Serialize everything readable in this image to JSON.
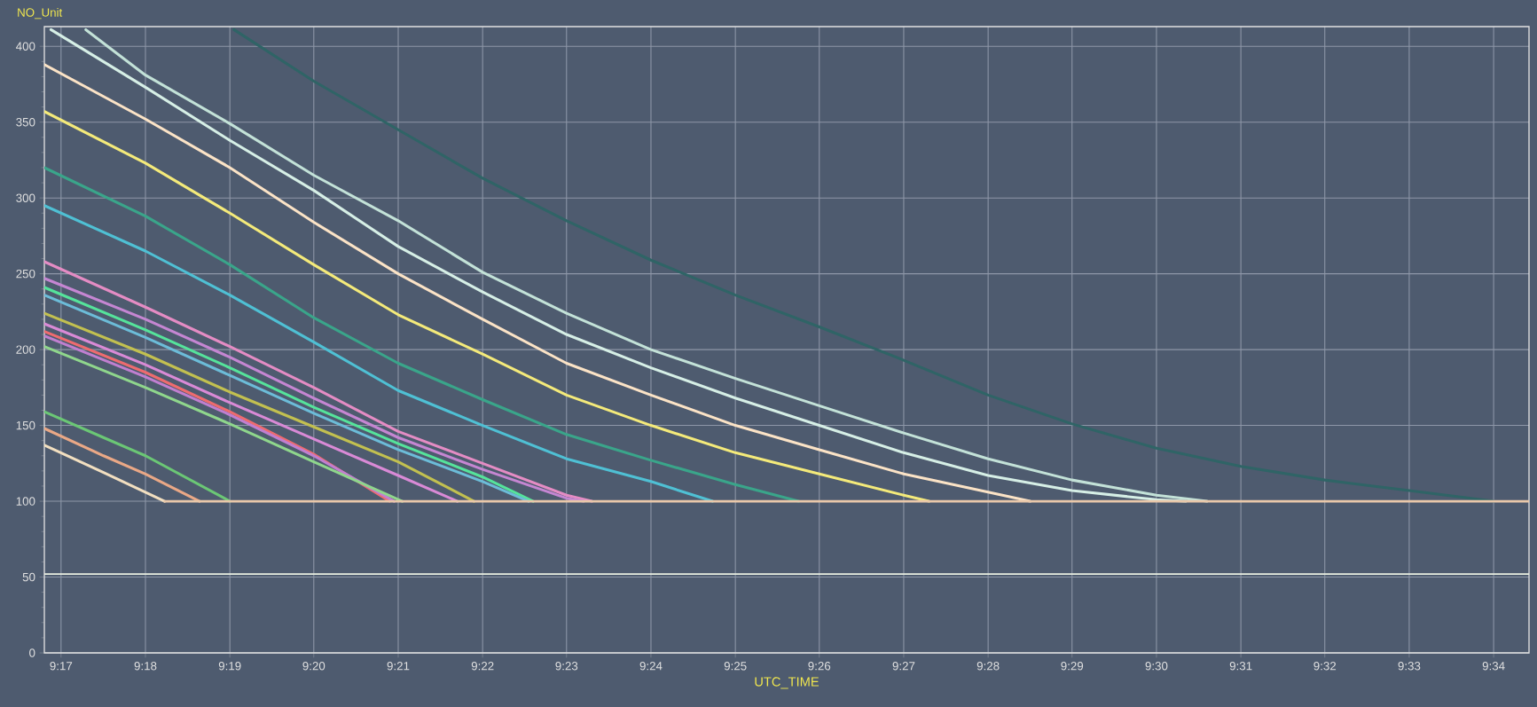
{
  "chart_data": {
    "type": "line",
    "xlabel": "UTC_TIME",
    "ylabel": "NO_Unit",
    "grid": true,
    "line_style": "solid",
    "xlim": [
      9.28,
      9.5737
    ],
    "ylim": [
      0,
      413
    ],
    "xticks": [
      {
        "value": 9.2833,
        "label": "9:17"
      },
      {
        "value": 9.3,
        "label": "9:18"
      },
      {
        "value": 9.3167,
        "label": "9:19"
      },
      {
        "value": 9.3333,
        "label": "9:20"
      },
      {
        "value": 9.35,
        "label": "9:21"
      },
      {
        "value": 9.3667,
        "label": "9:22"
      },
      {
        "value": 9.3833,
        "label": "9:23"
      },
      {
        "value": 9.4,
        "label": "9:24"
      },
      {
        "value": 9.4167,
        "label": "9:25"
      },
      {
        "value": 9.4333,
        "label": "9:26"
      },
      {
        "value": 9.45,
        "label": "9:27"
      },
      {
        "value": 9.4667,
        "label": "9:28"
      },
      {
        "value": 9.4833,
        "label": "9:29"
      },
      {
        "value": 9.5,
        "label": "9:30"
      },
      {
        "value": 9.5167,
        "label": "9:31"
      },
      {
        "value": 9.5333,
        "label": "9:32"
      },
      {
        "value": 9.55,
        "label": "9:33"
      },
      {
        "value": 9.5667,
        "label": "9:34"
      }
    ],
    "yticks": [
      0,
      50,
      100,
      150,
      200,
      250,
      300,
      350,
      400
    ],
    "ref_lines": [
      {
        "axis": "y",
        "value": 52,
        "color": "#e8eee0"
      }
    ],
    "series": [
      {
        "color": "#2f6466",
        "x": [
          9.3175,
          9.3333,
          9.35,
          9.3667,
          9.3833,
          9.4,
          9.4167,
          9.4333,
          9.45,
          9.4667,
          9.4833,
          9.5,
          9.5167,
          9.5333,
          9.55,
          9.5667
        ],
        "values": [
          411,
          377,
          345,
          313,
          285,
          259,
          236,
          215,
          193,
          170,
          151,
          135,
          123,
          114,
          107,
          100
        ]
      },
      {
        "color": "#c3e2d8",
        "x": [
          9.2882,
          9.3,
          9.3167,
          9.3333,
          9.35,
          9.3667,
          9.3833,
          9.4,
          9.4167,
          9.4333,
          9.45,
          9.4667,
          9.4833,
          9.5,
          9.51
        ],
        "values": [
          411,
          381,
          349,
          315,
          285,
          251,
          224,
          200,
          181,
          163,
          145,
          128,
          114,
          104,
          100
        ]
      },
      {
        "color": "#d6efe6",
        "x": [
          9.2813,
          9.3,
          9.3167,
          9.3333,
          9.35,
          9.3667,
          9.3833,
          9.4,
          9.4167,
          9.4333,
          9.45,
          9.4667,
          9.4833,
          9.5,
          9.5058
        ],
        "values": [
          411,
          373,
          338,
          305,
          268,
          238,
          210,
          188,
          168,
          150,
          132,
          117,
          107,
          101,
          100
        ]
      },
      {
        "color": "#fbe3c6",
        "x": [
          9.28,
          9.3,
          9.3167,
          9.3333,
          9.35,
          9.3667,
          9.3833,
          9.4,
          9.4167,
          9.4333,
          9.45,
          9.4667,
          9.475
        ],
        "values": [
          388,
          352,
          320,
          284,
          250,
          220,
          191,
          170,
          150,
          134,
          118,
          106,
          100
        ]
      },
      {
        "color": "#f4ea7a",
        "x": [
          9.28,
          9.3,
          9.3167,
          9.3333,
          9.35,
          9.3667,
          9.3833,
          9.4,
          9.4167,
          9.4333,
          9.45,
          9.455
        ],
        "values": [
          357,
          323,
          290,
          256,
          223,
          197,
          170,
          150,
          132,
          118,
          104,
          100
        ]
      },
      {
        "color": "#3aa58a",
        "x": [
          9.28,
          9.3,
          9.3167,
          9.3333,
          9.35,
          9.3667,
          9.3833,
          9.4,
          9.4167,
          9.4292
        ],
        "values": [
          320,
          288,
          256,
          221,
          191,
          167,
          144,
          127,
          111,
          100
        ]
      },
      {
        "color": "#4fc0d4",
        "x": [
          9.28,
          9.3,
          9.3167,
          9.3333,
          9.35,
          9.3667,
          9.3833,
          9.4,
          9.4122
        ],
        "values": [
          295,
          265,
          236,
          205,
          173,
          150,
          128,
          113,
          100
        ]
      },
      {
        "color": "#e48cc4",
        "x": [
          9.28,
          9.3,
          9.3167,
          9.3333,
          9.35,
          9.3667,
          9.3833,
          9.3883
        ],
        "values": [
          258,
          228,
          202,
          175,
          146,
          125,
          104,
          100
        ]
      },
      {
        "color": "#c586d2",
        "x": [
          9.28,
          9.3,
          9.3167,
          9.3333,
          9.35,
          9.3667,
          9.3833,
          9.3867
        ],
        "values": [
          247,
          220,
          195,
          168,
          142,
          121,
          102,
          100
        ]
      },
      {
        "color": "#55e39b",
        "x": [
          9.28,
          9.3,
          9.3167,
          9.3333,
          9.35,
          9.3667,
          9.3767
        ],
        "values": [
          241,
          213,
          188,
          162,
          138,
          116,
          100
        ]
      },
      {
        "color": "#6cbcd8",
        "x": [
          9.28,
          9.3,
          9.3167,
          9.3333,
          9.35,
          9.3667,
          9.3758
        ],
        "values": [
          236,
          208,
          183,
          158,
          134,
          113,
          100
        ]
      },
      {
        "color": "#c2c050",
        "x": [
          9.28,
          9.3,
          9.3167,
          9.3333,
          9.35,
          9.365
        ],
        "values": [
          224,
          197,
          172,
          149,
          126,
          100
        ]
      },
      {
        "color": "#d98ad6",
        "x": [
          9.28,
          9.3,
          9.3167,
          9.3333,
          9.35,
          9.3617
        ],
        "values": [
          217,
          190,
          165,
          141,
          117,
          100
        ]
      },
      {
        "color": "#ee6b6f",
        "x": [
          9.28,
          9.3,
          9.3167,
          9.3333,
          9.3483
        ],
        "values": [
          212,
          185,
          159,
          131,
          100
        ]
      },
      {
        "color": "#c07fd0",
        "x": [
          9.28,
          9.3,
          9.3167,
          9.3333,
          9.3492
        ],
        "values": [
          209,
          182,
          157,
          130,
          100
        ]
      },
      {
        "color": "#8fd68c",
        "x": [
          9.28,
          9.3,
          9.3167,
          9.3333,
          9.3508
        ],
        "values": [
          202,
          175,
          151,
          126,
          100
        ]
      },
      {
        "color": "#6bc775",
        "x": [
          9.28,
          9.2917,
          9.3,
          9.3167
        ],
        "values": [
          159,
          142,
          130,
          100
        ]
      },
      {
        "color": "#eaa886",
        "x": [
          9.28,
          9.2917,
          9.3,
          9.3107
        ],
        "values": [
          148,
          130,
          118,
          100
        ]
      },
      {
        "color": "#f2dfc0",
        "x": [
          9.28,
          9.2917,
          9.3038
        ],
        "values": [
          137,
          119,
          100
        ]
      },
      {
        "color": "#e9c8aa",
        "x": [
          9.3038,
          9.5737
        ],
        "values": [
          100,
          100
        ]
      }
    ]
  }
}
